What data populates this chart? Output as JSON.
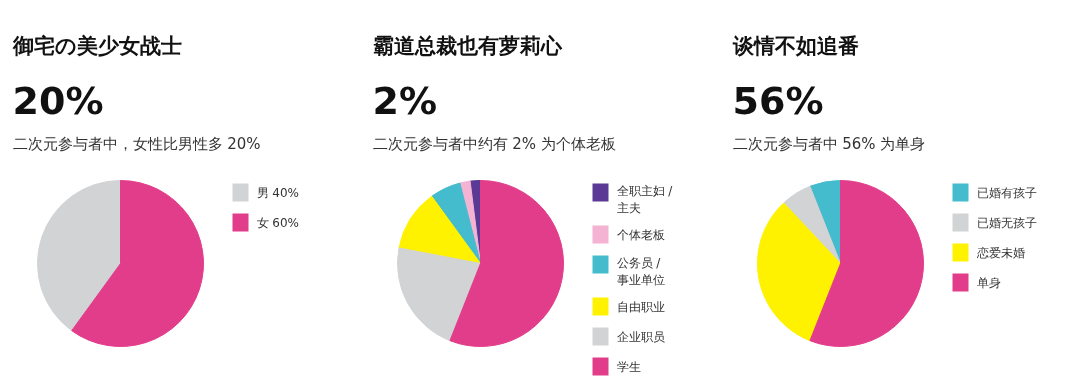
{
  "chart_data": [
    {
      "type": "pie",
      "title": "御宅の美少女战士",
      "subtitle": "二次元参与者中，女性比男性多 20%",
      "annotations": [
        "20%"
      ],
      "categories": [
        "男 40%",
        "女 60%"
      ],
      "values": [
        40,
        60
      ],
      "colors": [
        "#d1d3d4",
        "#e23d8b"
      ],
      "legend": "right"
    },
    {
      "type": "pie",
      "title": "霸道总裁也有萝莉心",
      "subtitle": "二次元参与者中约有 2% 为个体老板",
      "annotations": [
        "2%"
      ],
      "categories": [
        "全职主妇 / 主夫",
        "个体老板",
        "公务员 / 事业单位",
        "自由职业",
        "企业职员",
        "学生"
      ],
      "values": [
        2,
        2,
        6,
        12,
        22,
        56
      ],
      "colors": [
        "#5b3a96",
        "#f4b3d3",
        "#45bccd",
        "#fff200",
        "#d1d3d4",
        "#e23d8b"
      ],
      "legend": "right"
    },
    {
      "type": "pie",
      "title": "谈情不如追番",
      "subtitle": "二次元参与者中 56% 为单身",
      "annotations": [
        "56%"
      ],
      "categories": [
        "已婚有孩子",
        "已婚无孩子",
        "恋爱未婚",
        "单身"
      ],
      "values": [
        6,
        6,
        32,
        56
      ],
      "colors": [
        "#45bccd",
        "#d1d3d4",
        "#fff200",
        "#e23d8b"
      ],
      "legend": "right"
    }
  ]
}
